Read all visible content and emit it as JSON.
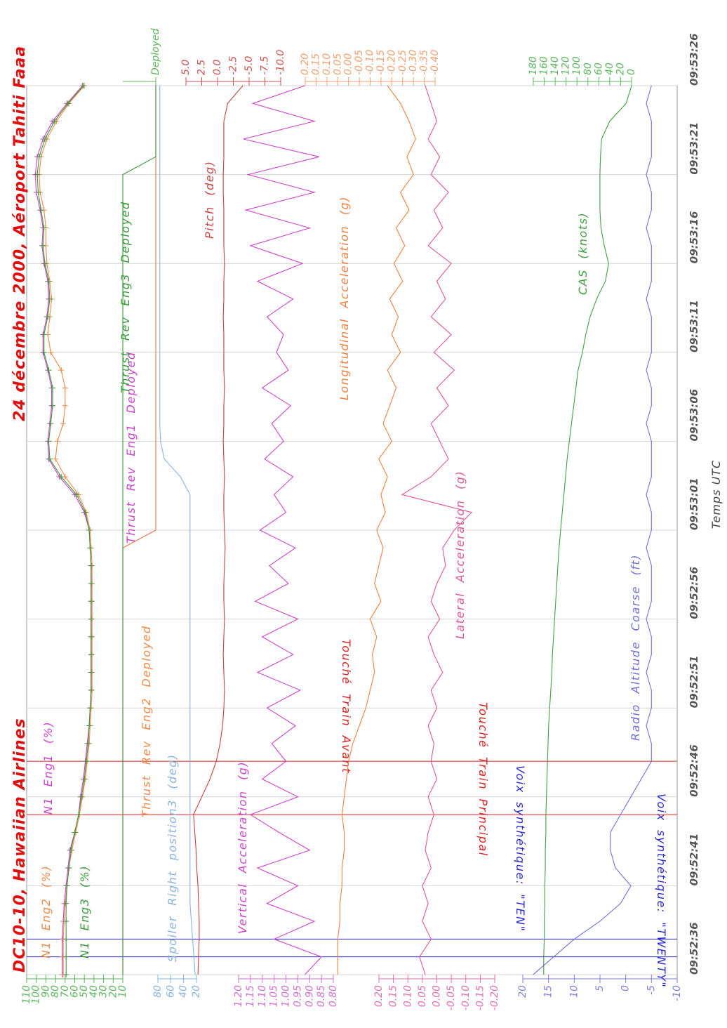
{
  "chart_data": {
    "type": "line",
    "title": "DC10-10, Hawaiian Airlines",
    "subtitle": "24 décembre 2000, Aéroport Tahiti Faaa",
    "xlabel": "Temps UTC",
    "xlim": [
      "09:52:36",
      "09:53:26"
    ],
    "xticks": [
      "09:52:36",
      "09:52:41",
      "09:52:46",
      "09:52:51",
      "09:52:56",
      "09:53:01",
      "09:53:06",
      "09:53:11",
      "09:53:16",
      "09:53:21",
      "09:53:26"
    ],
    "grid": true,
    "x": [
      "09:52:36",
      "09:52:37",
      "09:52:38",
      "09:52:39",
      "09:52:40",
      "09:52:41",
      "09:52:42",
      "09:52:43",
      "09:52:44",
      "09:52:45",
      "09:52:46",
      "09:52:47",
      "09:52:48",
      "09:52:49",
      "09:52:50",
      "09:52:51",
      "09:52:52",
      "09:52:53",
      "09:52:54",
      "09:52:55",
      "09:52:56",
      "09:52:57",
      "09:52:58",
      "09:52:59",
      "09:53:00",
      "09:53:01",
      "09:53:02",
      "09:53:03",
      "09:53:04",
      "09:53:05",
      "09:53:06",
      "09:53:07",
      "09:53:08",
      "09:53:09",
      "09:53:10",
      "09:53:11",
      "09:53:12",
      "09:53:13",
      "09:53:14",
      "09:53:15",
      "09:53:16",
      "09:53:17",
      "09:53:18",
      "09:53:19",
      "09:53:20",
      "09:53:21",
      "09:53:22",
      "09:53:23",
      "09:53:24",
      "09:53:25",
      "09:53:26"
    ],
    "axes": [
      {
        "side": "left",
        "color": "#5cb85c",
        "ylim": [
          10,
          110
        ],
        "yticks": [
          110,
          100,
          90,
          80,
          70,
          60,
          50,
          40,
          30,
          20,
          10
        ]
      },
      {
        "side": "left",
        "color": "#8ab4de",
        "ylim": [
          20,
          80
        ],
        "yticks": [
          80,
          60,
          40,
          20
        ]
      },
      {
        "side": "left",
        "color": "#d070d0",
        "ylim": [
          0.8,
          1.2
        ],
        "yticks": [
          {
            "value": 1.2,
            "label": "1.20"
          },
          {
            "value": 1.15,
            "label": "1.15"
          },
          {
            "value": 1.1,
            "label": "1.10"
          },
          {
            "value": 1.05,
            "label": "1.05"
          },
          {
            "value": 1,
            "label": "1.00"
          },
          {
            "value": 0.95,
            "label": "0.95"
          },
          {
            "value": 0.9,
            "label": "0.90"
          },
          {
            "value": 0.85,
            "label": "0.85"
          },
          {
            "value": 0.8,
            "label": "0.80"
          }
        ]
      },
      {
        "side": "left",
        "color": "#e070b0",
        "ylim": [
          -0.2,
          0.2
        ],
        "yticks": [
          {
            "value": 0.2,
            "label": "0.20"
          },
          {
            "value": 0.15,
            "label": "0.15"
          },
          {
            "value": 0.1,
            "label": "0.10"
          },
          {
            "value": 0.05,
            "label": "0.05"
          },
          {
            "value": 0,
            "label": "0.00"
          },
          {
            "value": -0.05,
            "label": "-0.05"
          },
          {
            "value": -0.1,
            "label": "-0.10"
          },
          {
            "value": -0.15,
            "label": "-0.15"
          },
          {
            "value": -0.2,
            "label": "-0.20"
          }
        ]
      },
      {
        "side": "left",
        "color": "#8080e0",
        "ylim": [
          -10,
          20
        ],
        "yticks": [
          20,
          15,
          10,
          5,
          0,
          -5,
          -10
        ]
      },
      {
        "side": "right",
        "color": "#5cb85c",
        "ylim": [
          0,
          1
        ],
        "yticks": [
          {
            "value": 1,
            "label": "Deployed"
          }
        ]
      },
      {
        "side": "right",
        "color": "#d05050",
        "ylim": [
          -10,
          5
        ],
        "yticks": [
          {
            "value": 5,
            "label": "5.0"
          },
          {
            "value": 2.5,
            "label": "2.5"
          },
          {
            "value": 0,
            "label": "0.0"
          },
          {
            "value": -2.5,
            "label": "-2.5"
          },
          {
            "value": -5,
            "label": "-5.0"
          },
          {
            "value": -7.5,
            "label": "-7.5"
          },
          {
            "value": -10,
            "label": "-10.0"
          }
        ]
      },
      {
        "side": "right",
        "color": "#f0a070",
        "ylim": [
          -0.4,
          0.2
        ],
        "yticks": [
          {
            "value": 0.2,
            "label": "0.20"
          },
          {
            "value": 0.15,
            "label": "0.15"
          },
          {
            "value": 0.1,
            "label": "0.10"
          },
          {
            "value": 0.05,
            "label": "0.05"
          },
          {
            "value": 0,
            "label": "0.00"
          },
          {
            "value": -0.05,
            "label": "-0.05"
          },
          {
            "value": -0.1,
            "label": "-0.10"
          },
          {
            "value": -0.15,
            "label": "-0.15"
          },
          {
            "value": -0.2,
            "label": "-0.20"
          },
          {
            "value": -0.25,
            "label": "-0.25"
          },
          {
            "value": -0.3,
            "label": "-0.30"
          },
          {
            "value": -0.35,
            "label": "-0.35"
          },
          {
            "value": -0.4,
            "label": "-0.40"
          }
        ]
      },
      {
        "side": "right",
        "color": "#5cb85c",
        "ylim": [
          0,
          180
        ],
        "yticks": [
          180,
          160,
          140,
          120,
          100,
          80,
          60,
          40,
          20,
          0
        ]
      }
    ],
    "series": [
      {
        "name": "N1 Eng1 (%)",
        "color": "#cc44cc",
        "axis": 0,
        "markers": true,
        "values": [
          73,
          73,
          73,
          72,
          71,
          69,
          67,
          65,
          60,
          56,
          54,
          51,
          49,
          47,
          45,
          44,
          43,
          43,
          43,
          43,
          43,
          43,
          43,
          43,
          44,
          45,
          50,
          60,
          76,
          87,
          88,
          86,
          84,
          84,
          88,
          93,
          93,
          89,
          87,
          88,
          92,
          94,
          93,
          96,
          100,
          101,
          99,
          93,
          83,
          68,
          52
        ]
      },
      {
        "name": "N1 Eng2 (%)",
        "color": "#f08a4b",
        "axis": 0,
        "markers": true,
        "values": [
          72,
          72,
          72,
          71,
          70,
          68,
          66,
          63,
          59,
          55,
          52,
          49,
          47,
          45,
          44,
          43,
          42,
          42,
          42,
          42,
          42,
          42,
          42,
          42,
          43,
          44,
          48,
          56,
          70,
          80,
          78,
          72,
          70,
          70,
          74,
          85,
          88,
          86,
          84,
          86,
          89,
          90,
          90,
          92,
          96,
          97,
          95,
          89,
          79,
          66,
          50
        ]
      },
      {
        "name": "N1 Eng3 (%)",
        "color": "#3a9a3a",
        "axis": 0,
        "markers": true,
        "values": [
          69,
          69,
          69,
          69,
          69,
          68,
          66,
          64,
          60,
          56,
          53,
          50,
          48,
          46,
          45,
          44,
          43,
          43,
          43,
          43,
          43,
          43,
          43,
          43,
          44,
          45,
          49,
          58,
          74,
          86,
          87,
          85,
          83,
          83,
          87,
          92,
          92,
          88,
          86,
          87,
          91,
          93,
          92,
          95,
          98,
          99,
          97,
          91,
          81,
          67,
          51
        ]
      },
      {
        "name": "Spoiler Right position3 (deg)",
        "color": "#8ab4de",
        "axis": 1,
        "values": [
          22,
          24,
          26,
          28,
          30,
          30,
          30,
          30,
          30,
          30,
          30,
          30,
          30,
          30,
          30,
          30,
          30,
          30,
          30,
          30,
          30,
          30,
          30,
          30,
          30,
          30,
          30,
          30,
          45,
          70,
          76,
          77,
          77,
          77,
          77,
          77,
          77,
          77,
          77,
          77,
          77,
          77,
          77,
          77,
          77,
          77,
          77,
          77,
          77,
          77,
          77
        ]
      },
      {
        "name": "Thrust Rev Eng1 Deployed",
        "color": "#cc44cc",
        "axis": 5,
        "values": [
          0,
          0,
          0,
          0,
          0,
          0,
          0,
          0,
          0,
          0,
          0,
          0,
          0,
          0,
          0,
          0,
          0,
          0,
          0,
          0,
          0,
          0,
          0,
          0,
          0,
          1,
          1,
          1,
          1,
          1,
          1,
          1,
          1,
          1,
          1,
          1,
          1,
          1,
          1,
          1,
          1,
          1,
          1,
          1,
          1,
          1,
          1,
          1,
          1,
          1,
          1
        ]
      },
      {
        "name": "Thrust Rev Eng2 Deployed",
        "color": "#f08a4b",
        "axis": 5,
        "values": [
          0,
          0,
          0,
          0,
          0,
          0,
          0,
          0,
          0,
          0,
          0,
          0,
          0,
          0,
          0,
          0,
          0,
          0,
          0,
          0,
          0,
          0,
          0,
          0,
          0,
          1,
          1,
          1,
          1,
          1,
          1,
          1,
          1,
          1,
          1,
          1,
          1,
          1,
          1,
          1,
          1,
          1,
          1,
          1,
          1,
          1,
          1,
          1,
          1,
          1,
          1
        ]
      },
      {
        "name": "Thrust Rev Eng3 Deployed",
        "color": "#3a9a3a",
        "axis": 5,
        "values": [
          0,
          0,
          0,
          0,
          0,
          0,
          0,
          0,
          0,
          0,
          0,
          0,
          0,
          0,
          0,
          0,
          0,
          0,
          0,
          0,
          0,
          0,
          0,
          0,
          0,
          0,
          0,
          0,
          0,
          0,
          0,
          0,
          0,
          0,
          0,
          0,
          0,
          0,
          0,
          0,
          0,
          0,
          0,
          0,
          0,
          0,
          1,
          1,
          1,
          1,
          1
        ]
      },
      {
        "name": "Vertical Acceleration (g)",
        "color": "#cc44cc",
        "axis": 2,
        "values": [
          0.92,
          0.85,
          1.05,
          0.88,
          1.08,
          0.95,
          1.12,
          0.9,
          1.03,
          1.15,
          0.95,
          1.1,
          1,
          1.06,
          0.96,
          1.08,
          0.94,
          1.12,
          0.97,
          1.1,
          0.95,
          1.13,
          0.99,
          1.07,
          0.96,
          1.11,
          1,
          1.05,
          0.97,
          1.09,
          1.01,
          1.06,
          0.98,
          1.1,
          0.99,
          1.04,
          1.01,
          1.08,
          0.97,
          1.12,
          0.93,
          1.15,
          0.9,
          1.17,
          0.88,
          1.16,
          0.86,
          1.18,
          0.88,
          1.14,
          0.92
        ]
      },
      {
        "name": "Pitch (deg)",
        "color": "#c84040",
        "axis": 6,
        "values": [
          3.1,
          3,
          2.9,
          2.9,
          3,
          3.1,
          3.3,
          3.4,
          3.6,
          3.8,
          2.5,
          1.2,
          0.2,
          -0.4,
          -0.8,
          -1,
          -1.1,
          -1,
          -0.9,
          -1,
          -1.1,
          -1,
          -1,
          -1.1,
          -1.2,
          -1.1,
          -1,
          -1,
          -1.1,
          -1,
          -0.9,
          -1,
          -1,
          -1.1,
          -1,
          -1,
          -1,
          -0.9,
          -1,
          -1,
          -1.1,
          -1,
          -1,
          -1,
          -0.9,
          -0.9,
          -1,
          -1,
          -1,
          -1.6,
          -4
        ]
      },
      {
        "name": "Longitudinal Acceleration (g)",
        "color": "#f08040",
        "axis": 7,
        "values": [
          0.05,
          0.05,
          0.05,
          0.04,
          0.04,
          0.03,
          0.03,
          0.02,
          0.02,
          0.03,
          0.02,
          0.01,
          0,
          -0.02,
          -0.05,
          -0.08,
          -0.1,
          -0.12,
          -0.11,
          -0.13,
          -0.1,
          -0.15,
          -0.12,
          -0.14,
          -0.16,
          -0.13,
          -0.17,
          -0.15,
          -0.18,
          -0.14,
          -0.2,
          -0.16,
          -0.19,
          -0.22,
          -0.18,
          -0.24,
          -0.2,
          -0.23,
          -0.19,
          -0.25,
          -0.21,
          -0.26,
          -0.22,
          -0.28,
          -0.24,
          -0.3,
          -0.27,
          -0.31,
          -0.28,
          -0.24,
          -0.18
        ]
      },
      {
        "name": "Lateral Acceleration (g)",
        "color": "#e0559a",
        "axis": 3,
        "values": [
          0.04,
          0.06,
          0.02,
          0.05,
          0.03,
          0.05,
          0.02,
          0.04,
          0.03,
          0.01,
          0.03,
          0,
          0.02,
          0.01,
          0.03,
          0,
          0.02,
          -0.02,
          0.01,
          0.03,
          -0.01,
          0.02,
          0,
          -0.03,
          -0.02,
          -0.06,
          -0.12,
          0.12,
          0.02,
          -0.04,
          -0.01,
          0.02,
          -0.04,
          0,
          -0.06,
          0.01,
          -0.05,
          0.02,
          -0.03,
          0,
          -0.05,
          0.03,
          -0.02,
          0.01,
          -0.04,
          0.02,
          -0.01,
          0.03,
          0,
          0.02,
          0.04
        ]
      },
      {
        "name": "CAS (knots)",
        "color": "#40a040",
        "axis": 8,
        "values": [
          161,
          161,
          160,
          160,
          159,
          159,
          158,
          158,
          157,
          157,
          156,
          155,
          154,
          153,
          152,
          150,
          148,
          146,
          145,
          143,
          141,
          139,
          137,
          135,
          133,
          130,
          127,
          124,
          121,
          118,
          114,
          110,
          106,
          102,
          98,
          90,
          84,
          76,
          64,
          48,
          42,
          50,
          56,
          58,
          58,
          58,
          57,
          55,
          40,
          10,
          0
        ]
      },
      {
        "name": "Radio Altitude Coarse (ft)",
        "color": "#7070d8",
        "axis": 4,
        "values": [
          18,
          14,
          10,
          5,
          1,
          -1,
          2,
          3,
          3,
          1,
          -1,
          -3,
          -5,
          -5,
          -4,
          -5,
          -5,
          -4,
          -5,
          -5,
          -4,
          -5,
          -5,
          -5,
          -4,
          -5,
          -5,
          -4,
          -5,
          -5,
          -5,
          -4,
          -5,
          -5,
          -4,
          -5,
          -5,
          -5,
          -4,
          -5,
          -5,
          -5,
          -4,
          -5,
          -5,
          -4,
          -5,
          -5,
          -5,
          -4,
          -5
        ]
      }
    ],
    "annotations": [
      {
        "text": "Voix synthétique: \"TWENTY\"",
        "x": "09:52:37",
        "color": "#2a2ad0"
      },
      {
        "text": "Voix synthétique: \"TEN\"",
        "x": "09:52:38",
        "color": "#2a2ad0"
      },
      {
        "text": "Touché Train Principal",
        "x": "09:52:45",
        "color": "#e02020"
      },
      {
        "text": "Touché Train Avant",
        "x": "09:52:48",
        "color": "#e02020"
      }
    ]
  }
}
